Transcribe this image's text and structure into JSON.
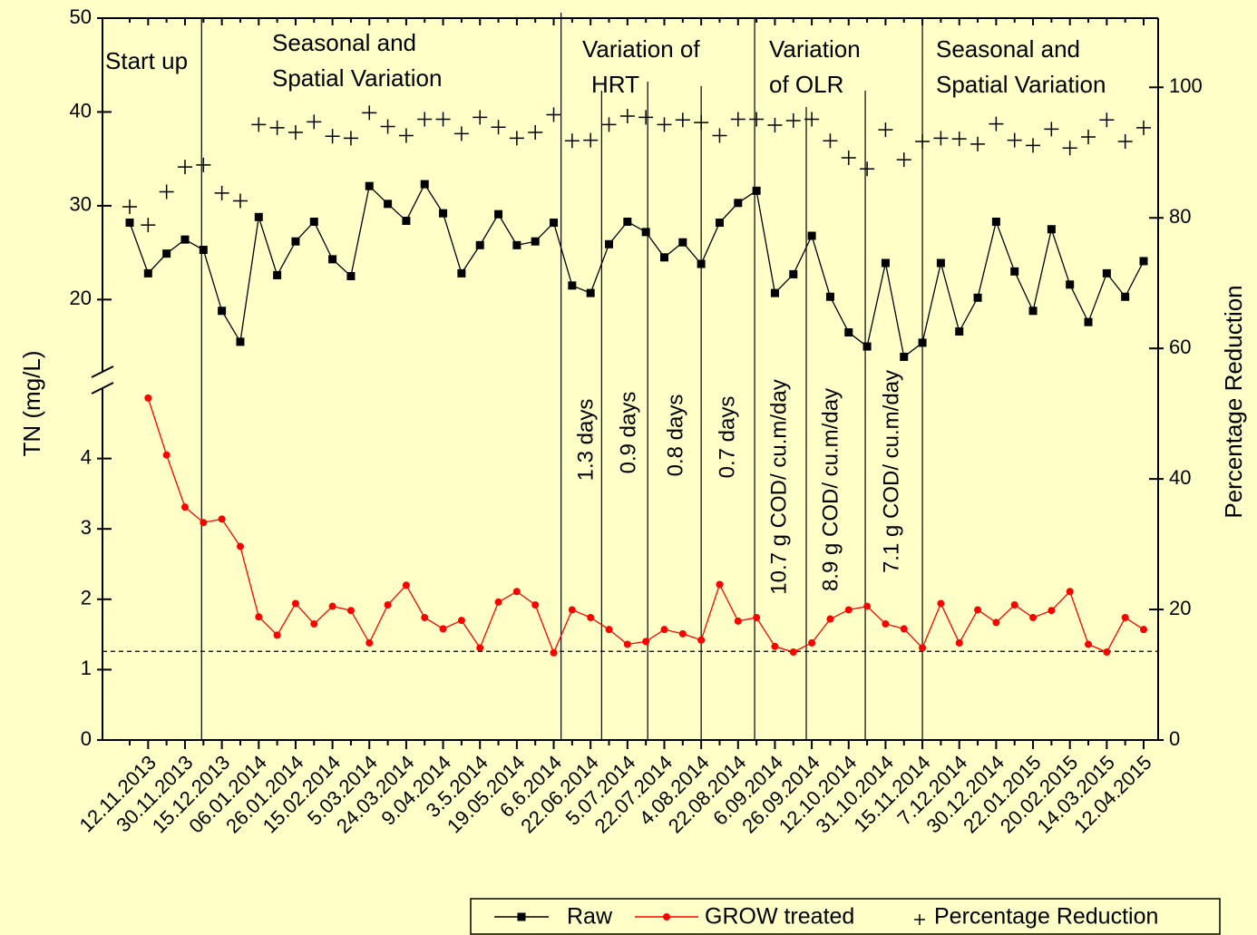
{
  "chart_data": {
    "type": "line",
    "y_label": "TN (mg/L)",
    "y2_label": "Percentage Reduction",
    "categories": [
      null,
      "12.11.2013",
      null,
      "30.11.2013",
      null,
      "15.12.2013",
      null,
      "06.01.2014",
      null,
      "26.01.2014",
      null,
      "15.02.2014",
      null,
      "5.03.2014",
      null,
      "24.03.2014",
      null,
      "9.04.2014",
      null,
      "3.5.2014",
      null,
      "19.05.2014",
      null,
      "6.6.2014",
      null,
      "22.06.2014",
      null,
      "5.07.2014",
      null,
      "22.07.2014",
      null,
      "4.08.2014",
      null,
      "22.08.2014",
      null,
      "6.09.2014",
      null,
      "26.09.2014",
      null,
      "12.10.2014",
      null,
      "31.10.2014",
      null,
      "15.11.2014",
      null,
      "7.12.2014",
      null,
      "30.12.2014",
      null,
      "22.01.2015",
      null,
      "20.02.2015",
      null,
      "14.03.2015",
      null,
      "12.04.2015"
    ],
    "y_segments": [
      {
        "ylim": [
          0,
          5
        ],
        "yticks": [
          0,
          1,
          2,
          3,
          4
        ]
      },
      {
        "ylim": [
          12.3,
          50
        ],
        "yticks": [
          20,
          30,
          40,
          50
        ]
      }
    ],
    "y2lim": [
      0,
      110.6
    ],
    "y2ticks": [
      0,
      20,
      40,
      60,
      80,
      100
    ],
    "reference_line": 1.26,
    "dividers": [
      3.9,
      23.4,
      25.6,
      28.1,
      31.0,
      33.9,
      36.7,
      39.9,
      43.0
    ],
    "annotations": [
      [
        "Start up"
      ],
      [
        "Seasonal and",
        "Spatial Variation"
      ],
      [
        "Variation of",
        "HRT"
      ],
      [
        "Variation",
        "of OLR"
      ],
      [
        "Seasonal and",
        "Spatial Variation"
      ],
      [
        "1.3 days"
      ],
      [
        "0.9 days"
      ],
      [
        "0.8 days"
      ],
      [
        "0.7 days"
      ],
      [
        "10.7 g COD/ cu.m/day"
      ],
      [
        "8.9 g COD/ cu.m/day"
      ],
      [
        "7.1 g COD/ cu.m/day"
      ]
    ],
    "series": [
      {
        "name": "Raw",
        "color": "#000000",
        "marker": "square",
        "segment": 1,
        "values": [
          28.2,
          22.8,
          24.9,
          26.4,
          25.3,
          18.8,
          15.5,
          28.8,
          22.6,
          26.2,
          28.3,
          24.3,
          22.5,
          32.1,
          30.2,
          28.4,
          32.3,
          29.2,
          22.8,
          25.8,
          29.1,
          25.8,
          26.2,
          28.2,
          21.5,
          20.7,
          25.9,
          28.3,
          27.2,
          24.5,
          26.1,
          23.8,
          28.2,
          30.3,
          31.6,
          20.7,
          22.7,
          26.8,
          20.3,
          16.5,
          15.0,
          23.9,
          13.9,
          15.4,
          23.9,
          16.6,
          20.2,
          28.3,
          23.0,
          18.8,
          27.5,
          21.6,
          17.6,
          22.8,
          20.3,
          24.1
        ]
      },
      {
        "name": "GROW treated",
        "color": "#ff0000",
        "marker": "circle",
        "segment": 0,
        "values": [
          null,
          4.86,
          4.05,
          3.31,
          3.09,
          3.14,
          2.75,
          1.75,
          1.49,
          1.94,
          1.65,
          1.9,
          1.84,
          1.38,
          1.92,
          2.2,
          1.74,
          1.58,
          1.7,
          1.31,
          1.96,
          2.11,
          1.92,
          1.24,
          1.85,
          1.74,
          1.57,
          1.36,
          1.4,
          1.57,
          1.51,
          1.42,
          2.21,
          1.69,
          1.74,
          1.33,
          1.25,
          1.38,
          1.72,
          1.85,
          1.9,
          1.65,
          1.58,
          1.31,
          1.94,
          1.38,
          1.85,
          1.67,
          1.92,
          1.74,
          1.84,
          2.11,
          1.36,
          1.25,
          1.74,
          1.57
        ]
      },
      {
        "name": "Percentage Reduction",
        "color": "#000000",
        "marker": "cross",
        "axis": "y2",
        "values": [
          81.7,
          78.9,
          84.0,
          87.8,
          88.1,
          83.8,
          82.6,
          94.3,
          93.8,
          93.1,
          94.7,
          92.5,
          92.2,
          96.1,
          94.0,
          92.6,
          95.1,
          95.1,
          92.9,
          95.4,
          93.9,
          92.2,
          93.1,
          95.8,
          91.8,
          91.9,
          94.3,
          95.6,
          95.4,
          94.3,
          95.0,
          94.6,
          92.6,
          95.1,
          95.1,
          94.2,
          94.9,
          95.1,
          91.8,
          89.2,
          87.5,
          93.5,
          88.9,
          91.7,
          92.2,
          92.1,
          91.3,
          94.4,
          91.9,
          91.1,
          93.6,
          90.7,
          92.4,
          95.0,
          91.7,
          93.8
        ]
      }
    ]
  }
}
